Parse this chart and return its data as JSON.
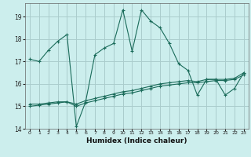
{
  "xlabel": "Humidex (Indice chaleur)",
  "background_color": "#cceeed",
  "grid_color": "#aacccc",
  "line_color": "#1a6b5a",
  "x_hours": [
    0,
    1,
    2,
    3,
    4,
    5,
    6,
    7,
    8,
    9,
    10,
    11,
    12,
    13,
    14,
    15,
    16,
    17,
    18,
    19,
    20,
    21,
    22,
    23
  ],
  "y_main": [
    17.1,
    17.0,
    17.5,
    17.9,
    18.2,
    14.1,
    15.2,
    17.3,
    17.6,
    17.8,
    19.3,
    17.45,
    19.3,
    18.8,
    18.5,
    17.8,
    16.9,
    16.6,
    15.5,
    16.2,
    16.2,
    15.5,
    15.8,
    16.5
  ],
  "y_line2": [
    15.1,
    15.1,
    15.15,
    15.2,
    15.2,
    15.1,
    15.25,
    15.35,
    15.45,
    15.55,
    15.65,
    15.7,
    15.8,
    15.9,
    16.0,
    16.05,
    16.1,
    16.15,
    16.1,
    16.2,
    16.2,
    16.2,
    16.25,
    16.5
  ],
  "y_line3": [
    15.0,
    15.05,
    15.1,
    15.15,
    15.2,
    15.0,
    15.15,
    15.25,
    15.35,
    15.45,
    15.55,
    15.6,
    15.7,
    15.8,
    15.9,
    15.95,
    16.0,
    16.05,
    16.05,
    16.1,
    16.15,
    16.15,
    16.2,
    16.4
  ],
  "ylim": [
    14.0,
    19.6
  ],
  "yticks": [
    14,
    15,
    16,
    17,
    18,
    19
  ],
  "xlim": [
    -0.5,
    23.5
  ]
}
